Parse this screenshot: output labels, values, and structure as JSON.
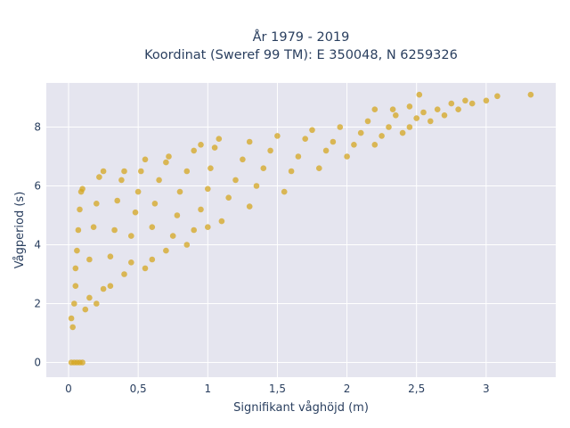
{
  "chart_data": {
    "type": "scatter",
    "title_line1": "År 1979 - 2019",
    "title_line2": "Koordinat (Sweref 99 TM): E 350048, N 6259326",
    "xlabel": "Signifikant våghöjd (m)",
    "ylabel": "Vågperiod (s)",
    "xlim": [
      -0.16,
      3.5
    ],
    "ylim": [
      -0.5,
      9.5
    ],
    "x_ticks": [
      0,
      0.5,
      1,
      1.5,
      2,
      2.5,
      3
    ],
    "x_tick_labels": [
      "0",
      "0,5",
      "1",
      "1,5",
      "2",
      "2,5",
      "3"
    ],
    "y_ticks": [
      0,
      2,
      4,
      6,
      8
    ],
    "y_tick_labels": [
      "0",
      "2",
      "4",
      "6",
      "8"
    ],
    "grid": true,
    "background": "#e5e5ef",
    "marker_color": "#d4a520",
    "series": [
      {
        "points": [
          [
            0.02,
            0.0
          ],
          [
            0.04,
            0.0
          ],
          [
            0.06,
            0.0
          ],
          [
            0.08,
            0.0
          ],
          [
            0.1,
            0.0
          ],
          [
            0.02,
            1.5
          ],
          [
            0.03,
            1.2
          ],
          [
            0.04,
            2.0
          ],
          [
            0.05,
            2.6
          ],
          [
            0.05,
            3.2
          ],
          [
            0.06,
            3.8
          ],
          [
            0.07,
            4.5
          ],
          [
            0.08,
            5.2
          ],
          [
            0.09,
            5.8
          ],
          [
            0.1,
            5.9
          ],
          [
            0.12,
            1.8
          ],
          [
            0.15,
            2.2
          ],
          [
            0.15,
            3.5
          ],
          [
            0.18,
            4.6
          ],
          [
            0.2,
            5.4
          ],
          [
            0.22,
            6.3
          ],
          [
            0.25,
            6.5
          ],
          [
            0.2,
            2.0
          ],
          [
            0.25,
            2.5
          ],
          [
            0.3,
            2.6
          ],
          [
            0.3,
            3.6
          ],
          [
            0.33,
            4.5
          ],
          [
            0.35,
            5.5
          ],
          [
            0.38,
            6.2
          ],
          [
            0.4,
            6.5
          ],
          [
            0.4,
            3.0
          ],
          [
            0.45,
            3.4
          ],
          [
            0.45,
            4.3
          ],
          [
            0.48,
            5.1
          ],
          [
            0.5,
            5.8
          ],
          [
            0.52,
            6.5
          ],
          [
            0.55,
            6.9
          ],
          [
            0.55,
            3.2
          ],
          [
            0.6,
            3.5
          ],
          [
            0.6,
            4.6
          ],
          [
            0.62,
            5.4
          ],
          [
            0.65,
            6.2
          ],
          [
            0.7,
            6.8
          ],
          [
            0.72,
            7.0
          ],
          [
            0.7,
            3.8
          ],
          [
            0.75,
            4.3
          ],
          [
            0.78,
            5.0
          ],
          [
            0.8,
            5.8
          ],
          [
            0.85,
            6.5
          ],
          [
            0.9,
            7.2
          ],
          [
            0.95,
            7.4
          ],
          [
            0.85,
            4.0
          ],
          [
            0.9,
            4.5
          ],
          [
            0.95,
            5.2
          ],
          [
            1.0,
            5.9
          ],
          [
            1.02,
            6.6
          ],
          [
            1.05,
            7.3
          ],
          [
            1.08,
            7.6
          ],
          [
            1.0,
            4.6
          ],
          [
            1.1,
            4.8
          ],
          [
            1.15,
            5.6
          ],
          [
            1.2,
            6.2
          ],
          [
            1.25,
            6.9
          ],
          [
            1.3,
            7.5
          ],
          [
            1.3,
            5.3
          ],
          [
            1.35,
            6.0
          ],
          [
            1.4,
            6.6
          ],
          [
            1.45,
            7.2
          ],
          [
            1.5,
            7.7
          ],
          [
            1.55,
            5.8
          ],
          [
            1.6,
            6.5
          ],
          [
            1.65,
            7.0
          ],
          [
            1.7,
            7.6
          ],
          [
            1.75,
            7.9
          ],
          [
            1.8,
            6.6
          ],
          [
            1.85,
            7.2
          ],
          [
            1.9,
            7.5
          ],
          [
            1.95,
            8.0
          ],
          [
            2.0,
            7.0
          ],
          [
            2.05,
            7.4
          ],
          [
            2.1,
            7.8
          ],
          [
            2.15,
            8.2
          ],
          [
            2.2,
            7.4
          ],
          [
            2.25,
            7.7
          ],
          [
            2.3,
            8.0
          ],
          [
            2.35,
            8.4
          ],
          [
            2.4,
            7.8
          ],
          [
            2.45,
            8.0
          ],
          [
            2.5,
            8.3
          ],
          [
            2.55,
            8.5
          ],
          [
            2.6,
            8.2
          ],
          [
            2.65,
            8.6
          ],
          [
            2.7,
            8.4
          ],
          [
            2.75,
            8.8
          ],
          [
            2.8,
            8.6
          ],
          [
            2.85,
            8.9
          ],
          [
            2.9,
            8.8
          ],
          [
            3.0,
            8.9
          ],
          [
            3.08,
            9.05
          ],
          [
            3.32,
            9.1
          ],
          [
            2.52,
            9.1
          ],
          [
            2.45,
            8.7
          ],
          [
            2.33,
            8.6
          ],
          [
            2.2,
            8.6
          ]
        ]
      }
    ]
  }
}
